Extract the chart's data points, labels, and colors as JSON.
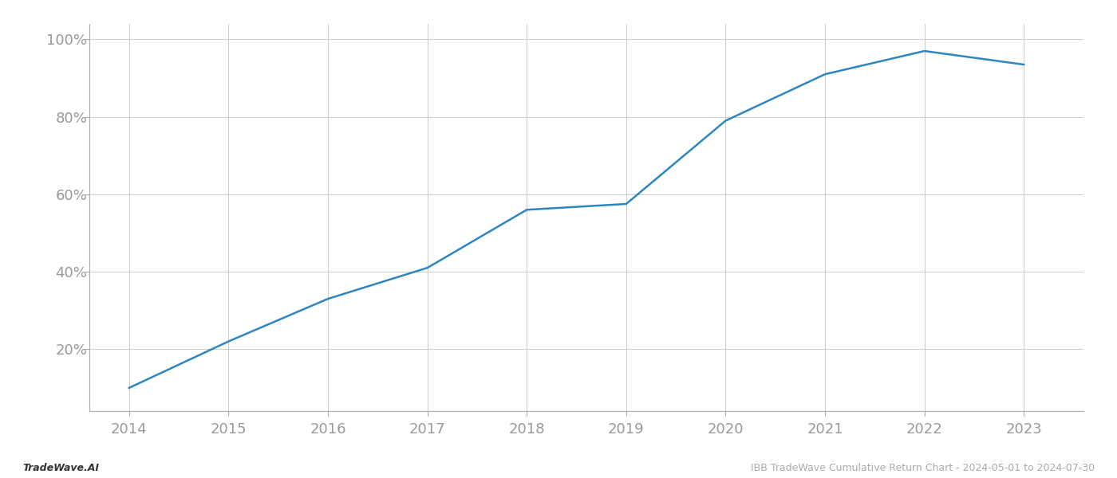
{
  "x_years": [
    2014,
    2015,
    2016,
    2017,
    2018,
    2019,
    2020,
    2021,
    2022,
    2023
  ],
  "y_values": [
    0.1,
    0.22,
    0.33,
    0.41,
    0.56,
    0.575,
    0.79,
    0.91,
    0.97,
    0.935
  ],
  "line_color": "#2e86c1",
  "line_width": 1.8,
  "grid_color": "#cccccc",
  "background_color": "#ffffff",
  "footer_left": "TradeWave.AI",
  "footer_right": "IBB TradeWave Cumulative Return Chart - 2024-05-01 to 2024-07-30",
  "yticks": [
    0.2,
    0.4,
    0.6,
    0.8,
    1.0
  ],
  "ytick_labels": [
    "20%",
    "40%",
    "60%",
    "80%",
    "100%"
  ],
  "xlim": [
    2013.6,
    2023.6
  ],
  "ylim": [
    0.04,
    1.04
  ],
  "xticks": [
    2014,
    2015,
    2016,
    2017,
    2018,
    2019,
    2020,
    2021,
    2022,
    2023
  ],
  "tick_label_color": "#999999",
  "footer_fontsize": 9,
  "tick_fontsize": 13,
  "footer_left_color": "#333333",
  "footer_right_color": "#aaaaaa"
}
